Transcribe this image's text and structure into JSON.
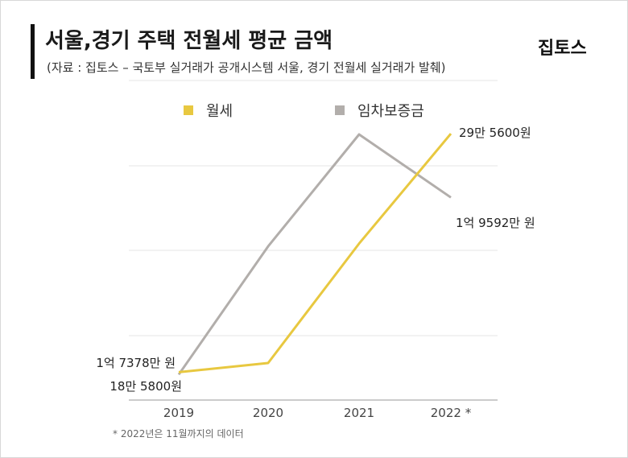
{
  "header": {
    "title": "서울,경기 주택 전월세 평균 금액",
    "source": "(자료 : 집토스 – 국토부 실거래가 공개시스템 서울, 경기 전월세 실거래가 발췌)",
    "brand": "집토스"
  },
  "footnote": "* 2022년은 11월까지의 데이터",
  "colors": {
    "wolse": "#e8c840",
    "deposit": "#b2aeab",
    "grid": "#e6e6e6",
    "axis": "#bbbbbb"
  },
  "chart_data": {
    "type": "line",
    "title": "서울,경기 주택 전월세 평균 금액",
    "xlabel": "",
    "ylabel": "",
    "legend_position": "top",
    "grid": true,
    "x": [
      "2019",
      "2020",
      "2021",
      "2022 *"
    ],
    "series": [
      {
        "name": "월세",
        "unit": "원",
        "values": [
          185800,
          190000,
          245000,
          295600
        ],
        "ylim": [
          180000,
          296000
        ]
      },
      {
        "name": "임차보증금",
        "unit": "만 원",
        "values": [
          17378,
          18980,
          20380,
          19592
        ],
        "ylim": [
          17250,
          20400
        ]
      }
    ],
    "annotations": [
      {
        "series": "임차보증금",
        "x": "2019",
        "text": "1억 7378만 원"
      },
      {
        "series": "월세",
        "x": "2019",
        "text": "18만 5800원"
      },
      {
        "series": "월세",
        "x": "2022 *",
        "text": "29만 5600원"
      },
      {
        "series": "임차보증금",
        "x": "2022 *",
        "text": "1억 9592만 원"
      }
    ]
  }
}
